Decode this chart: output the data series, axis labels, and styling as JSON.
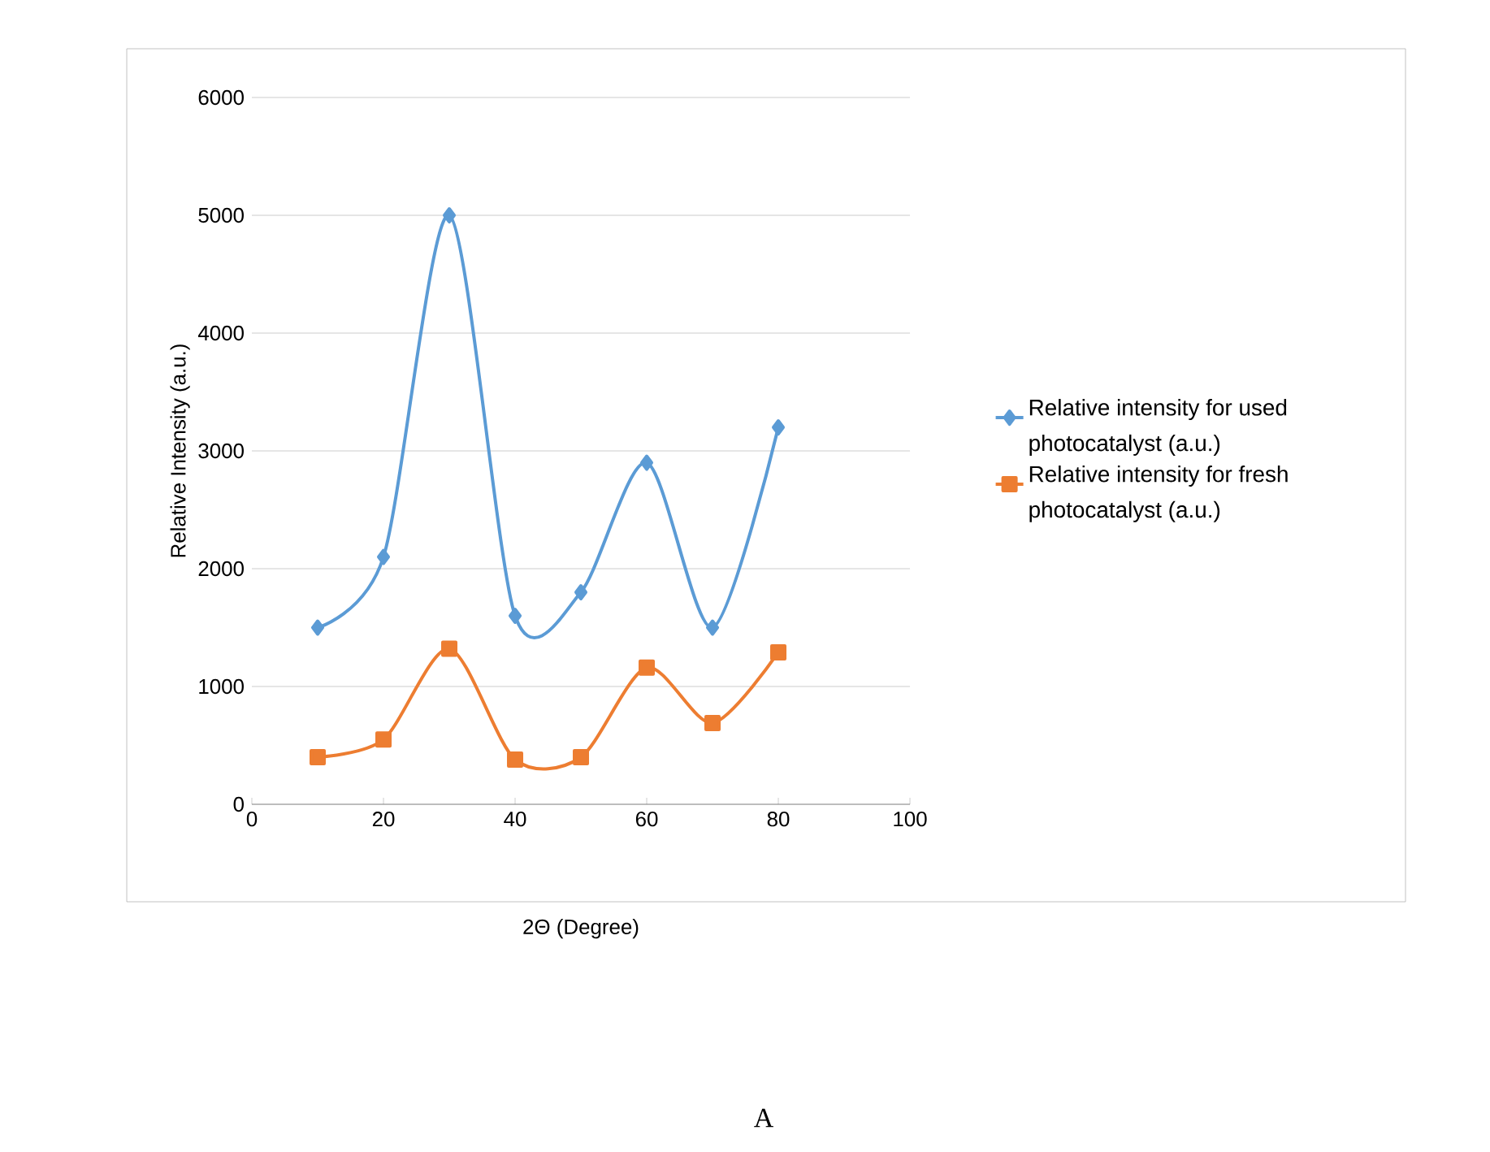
{
  "chart_data": {
    "type": "line",
    "xlabel": "2Θ (Degree)",
    "ylabel": "Relative Intensity (a.u.)",
    "x": [
      10,
      20,
      30,
      40,
      50,
      60,
      70,
      80
    ],
    "series": [
      {
        "name": "Relative intensity for used photocatalyst (a.u.)",
        "color": "#5b9bd5",
        "marker": "diamond",
        "values": [
          1500,
          2100,
          5000,
          1600,
          1800,
          2900,
          1500,
          3200
        ]
      },
      {
        "name": "Relative intensity for fresh photocatalyst (a.u.)",
        "color": "#ed7d31",
        "marker": "square",
        "values": [
          400,
          550,
          1320,
          380,
          400,
          1160,
          690,
          1290
        ]
      }
    ],
    "xlim": [
      0,
      100
    ],
    "xticks": [
      0,
      20,
      40,
      60,
      80,
      100
    ],
    "ylim": [
      0,
      6000
    ],
    "yticks": [
      0,
      1000,
      2000,
      3000,
      4000,
      5000,
      6000
    ],
    "grid": "y",
    "legend": "right",
    "annotations": [
      "A"
    ]
  }
}
